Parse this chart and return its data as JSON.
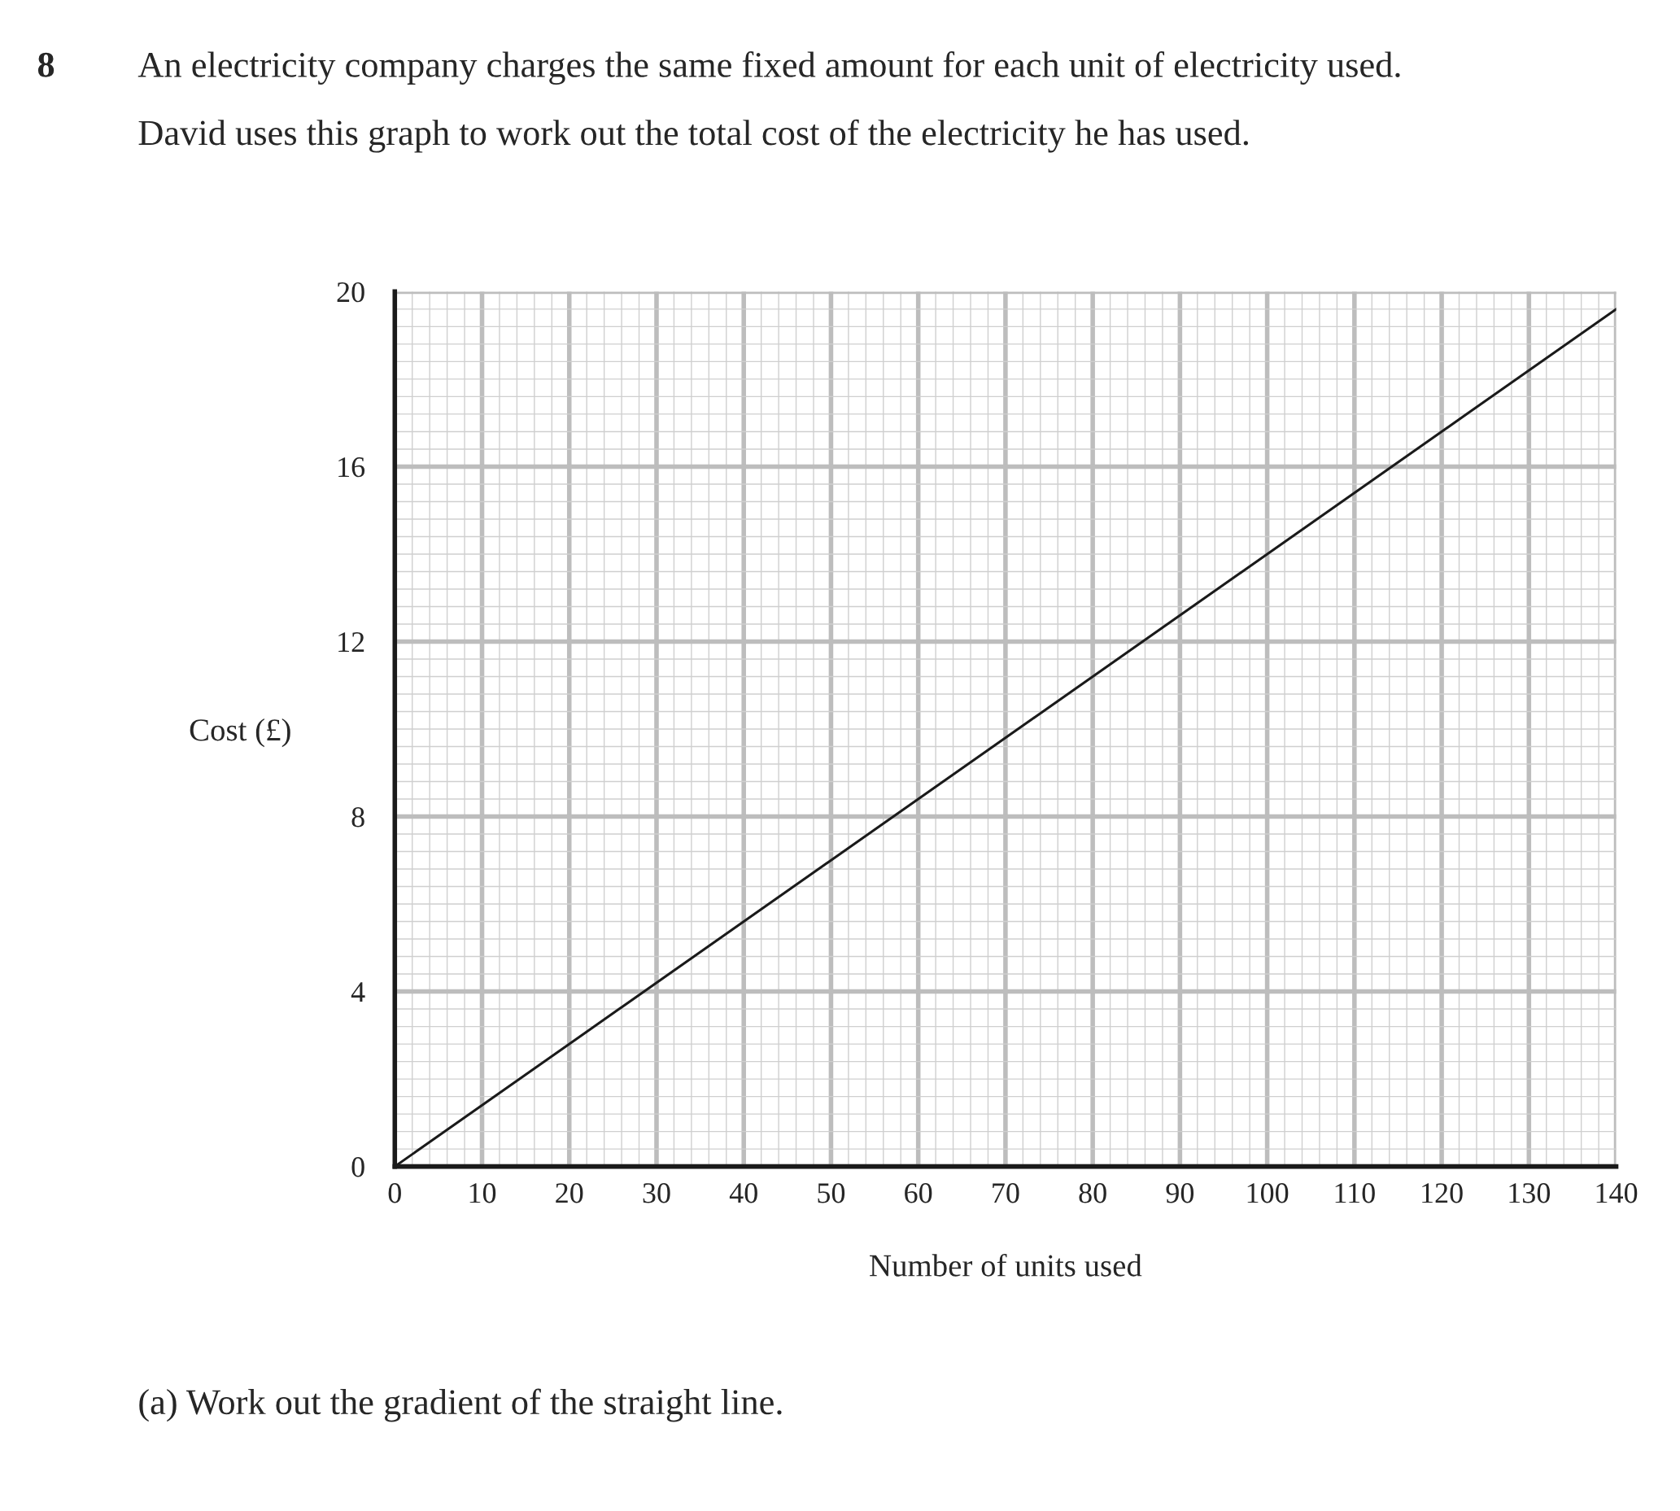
{
  "chart_data": {
    "type": "line",
    "title": "An electricity company charges the same fixed amount for each unit of electricity used.",
    "subtitle": "David uses this graph to work out the total cost of the electricity he has used.",
    "xlabel": "Number of units used",
    "ylabel": "Cost (£)",
    "x": [
      0,
      140
    ],
    "series": [
      {
        "color": "#1a1a1a",
        "values": [
          0,
          19.6
        ]
      }
    ],
    "xlim": [
      0,
      140
    ],
    "ylim": [
      0,
      20
    ],
    "xticks": [
      0,
      10,
      20,
      30,
      40,
      50,
      60,
      70,
      80,
      90,
      100,
      110,
      120,
      130,
      140
    ],
    "yticks": [
      0,
      4,
      8,
      12,
      16,
      20
    ],
    "grid": true,
    "legend": false,
    "marker": "none",
    "line_style": "solid",
    "annotations": [
      "8",
      "(a) Work out the gradient of the straight line."
    ]
  }
}
